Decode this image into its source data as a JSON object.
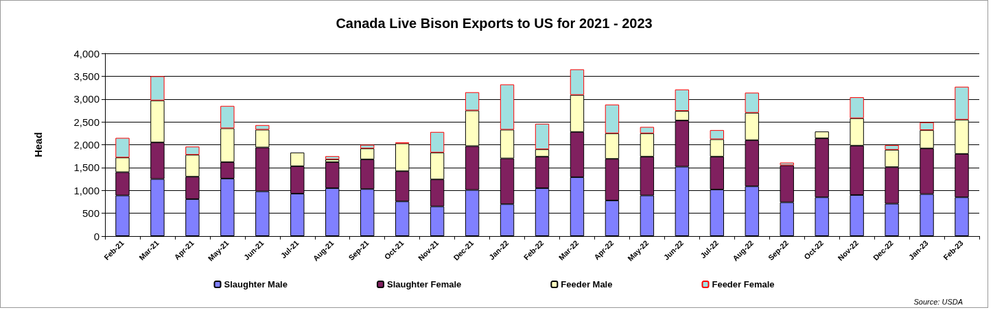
{
  "chart_data": {
    "type": "bar",
    "title": "Canada Live Bison Exports to US for 2021 - 2023",
    "ylabel": "Head",
    "stacked": true,
    "grid": "y",
    "legend": "bottom",
    "categories": [
      "Feb-21",
      "Mar-21",
      "Apr-21",
      "May-21",
      "Jun-21",
      "Jul-21",
      "Aug-21",
      "Sep-21",
      "Oct-21",
      "Nov-21",
      "Dec-21",
      "Jan-22",
      "Feb-22",
      "Mar-22",
      "Apr-22",
      "May-22",
      "Jun-22",
      "Jul-22",
      "Aug-22",
      "Sep-22",
      "Oct-22",
      "Nov-22",
      "Dec-22",
      "Jan-23",
      "Feb-23"
    ],
    "ylim": [
      0,
      4000
    ],
    "yticks": [
      {
        "value": 0,
        "label": "0"
      },
      {
        "value": 500,
        "label": "500"
      },
      {
        "value": 1000,
        "label": "1,000"
      },
      {
        "value": 1500,
        "label": "1,500"
      },
      {
        "value": 2000,
        "label": "2,000"
      },
      {
        "value": 2500,
        "label": "2,500"
      },
      {
        "value": 3000,
        "label": "3,000"
      },
      {
        "value": 3500,
        "label": "3,500"
      },
      {
        "value": 4000,
        "label": "4,000"
      }
    ],
    "series": [
      {
        "name": "Slaughter Male",
        "color": "#8080ff",
        "values": [
          890,
          1250,
          810,
          1260,
          980,
          930,
          1050,
          1030,
          760,
          650,
          1010,
          700,
          1050,
          1290,
          780,
          890,
          1520,
          1020,
          1090,
          740,
          850,
          900,
          710,
          920,
          850
        ]
      },
      {
        "name": "Slaughter Female",
        "color": "#80205f",
        "values": [
          510,
          800,
          490,
          360,
          960,
          600,
          570,
          650,
          660,
          590,
          960,
          1000,
          690,
          990,
          910,
          850,
          1010,
          720,
          1010,
          810,
          1290,
          1080,
          800,
          1000,
          950
        ]
      },
      {
        "name": "Feeder Male",
        "color": "#ffffc0",
        "values": [
          320,
          920,
          480,
          740,
          390,
          300,
          60,
          240,
          610,
          590,
          780,
          630,
          160,
          810,
          560,
          510,
          210,
          380,
          600,
          null,
          150,
          600,
          380,
          400,
          750
        ]
      },
      {
        "name": "Feeder Female",
        "color": "#a0e0e0",
        "values": [
          430,
          530,
          180,
          490,
          100,
          0,
          70,
          80,
          20,
          450,
          400,
          990,
          560,
          560,
          630,
          140,
          470,
          200,
          440,
          60,
          0,
          460,
          100,
          170,
          720
        ]
      }
    ],
    "annotations": [
      "Source: USDA"
    ]
  }
}
